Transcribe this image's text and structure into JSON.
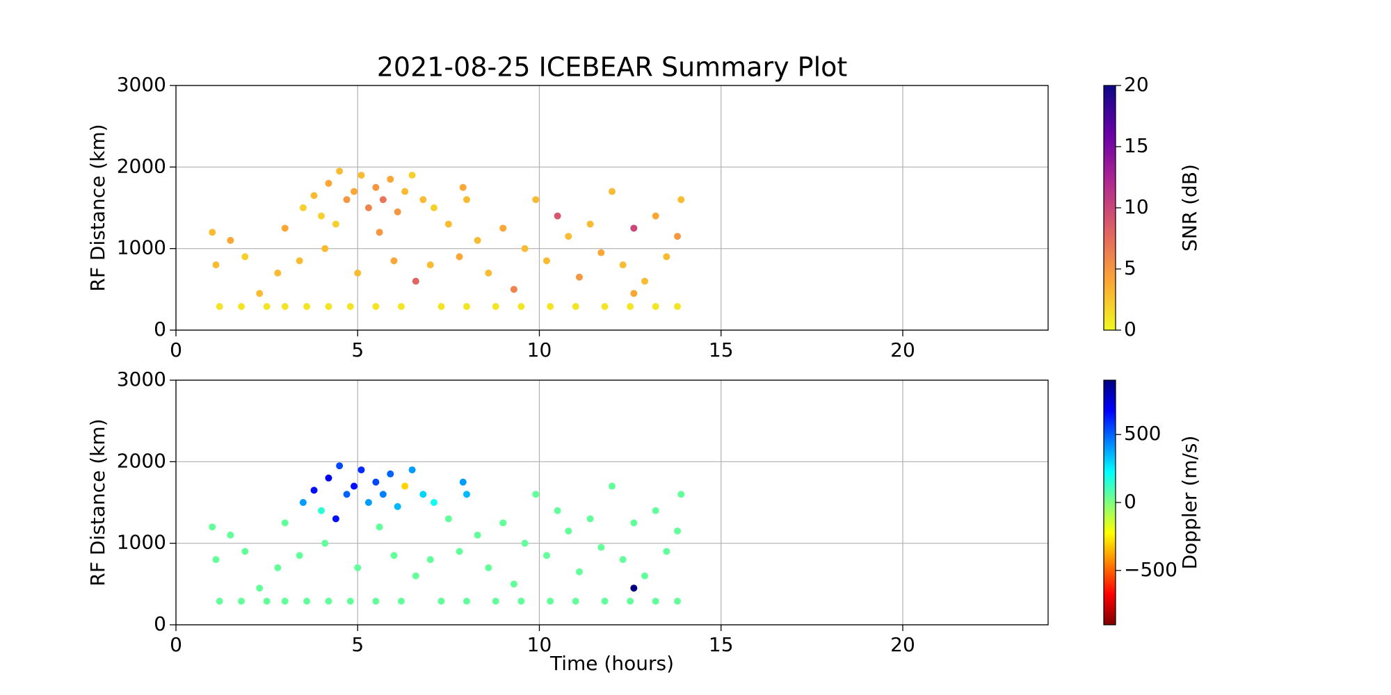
{
  "chart_data": [
    {
      "type": "scatter",
      "title": "2021-08-25 ICEBEAR Summary Plot",
      "ylabel": "RF Distance (km)",
      "xlim": [
        0,
        24
      ],
      "ylim": [
        0,
        3000
      ],
      "xticks": [
        0,
        5,
        10,
        15,
        20
      ],
      "yticks": [
        0,
        1000,
        2000,
        3000
      ],
      "grid": true,
      "colorbar": {
        "label": "SNR (dB)",
        "lim": [
          0,
          20
        ],
        "ticks": [
          0,
          5,
          10,
          15,
          20
        ],
        "colormap": "plasma_r"
      },
      "x": [
        1.2,
        1.8,
        2.5,
        3.0,
        3.6,
        4.2,
        4.8,
        5.5,
        6.2,
        7.3,
        8.0,
        8.8,
        9.5,
        10.3,
        11.0,
        11.8,
        12.5,
        13.2,
        13.8,
        3.5,
        3.8,
        4.0,
        4.2,
        4.4,
        4.5,
        4.7,
        4.9,
        5.1,
        5.3,
        5.5,
        5.7,
        5.9,
        6.1,
        6.3,
        6.5,
        6.8,
        7.1,
        7.9,
        8.0,
        1.0,
        1.1,
        1.5,
        1.9,
        2.3,
        2.8,
        3.0,
        3.4,
        4.1,
        5.0,
        5.6,
        6.0,
        6.6,
        7.0,
        7.5,
        7.8,
        8.3,
        8.6,
        9.0,
        9.3,
        9.6,
        9.9,
        10.2,
        10.5,
        10.8,
        11.1,
        11.4,
        11.7,
        12.0,
        12.3,
        12.6,
        12.9,
        13.2,
        13.5,
        13.8,
        13.9,
        12.6
      ],
      "y": [
        290,
        290,
        290,
        290,
        290,
        290,
        290,
        290,
        290,
        290,
        290,
        290,
        290,
        290,
        290,
        290,
        290,
        290,
        290,
        1500,
        1650,
        1400,
        1800,
        1300,
        1950,
        1600,
        1700,
        1900,
        1500,
        1750,
        1600,
        1850,
        1450,
        1700,
        1900,
        1600,
        1500,
        1750,
        1600,
        1200,
        800,
        1100,
        900,
        450,
        700,
        1250,
        850,
        1000,
        700,
        1200,
        850,
        600,
        800,
        1300,
        900,
        1100,
        700,
        1250,
        500,
        1000,
        1600,
        850,
        1400,
        1150,
        650,
        1300,
        950,
        1700,
        800,
        1250,
        600,
        1400,
        900,
        1150,
        1600,
        450
      ],
      "c": [
        1,
        1,
        1,
        1,
        1,
        1,
        1,
        1,
        1,
        1,
        1,
        1,
        1,
        1,
        1,
        1,
        1,
        1,
        1,
        2,
        3,
        2,
        4,
        2,
        3,
        5,
        4,
        3,
        6,
        5,
        7,
        4,
        5,
        3,
        2,
        3,
        2,
        4,
        3,
        3,
        3,
        4,
        2,
        3,
        3,
        4,
        3,
        3,
        3,
        5,
        4,
        8,
        3,
        3,
        4,
        3,
        3,
        4,
        6,
        3,
        3,
        3,
        9,
        3,
        5,
        3,
        4,
        3,
        3,
        10,
        3,
        4,
        3,
        5,
        3,
        4
      ]
    },
    {
      "type": "scatter",
      "ylabel": "RF Distance (km)",
      "xlabel": "Time (hours)",
      "xlim": [
        0,
        24
      ],
      "ylim": [
        0,
        3000
      ],
      "xticks": [
        0,
        5,
        10,
        15,
        20
      ],
      "yticks": [
        0,
        1000,
        2000,
        3000
      ],
      "grid": true,
      "colorbar": {
        "label": "Doppler (m/s)",
        "lim": [
          -900,
          900
        ],
        "ticks": [
          {
            "value": -500,
            "label": "−500"
          },
          0,
          500
        ],
        "colormap": "jet_r"
      },
      "x": [
        1.2,
        1.8,
        2.5,
        3.0,
        3.6,
        4.2,
        4.8,
        5.5,
        6.2,
        7.3,
        8.0,
        8.8,
        9.5,
        10.3,
        11.0,
        11.8,
        12.5,
        13.2,
        13.8,
        3.5,
        3.8,
        4.0,
        4.2,
        4.4,
        4.5,
        4.7,
        4.9,
        5.1,
        5.3,
        5.5,
        5.7,
        5.9,
        6.1,
        6.3,
        6.5,
        6.8,
        7.1,
        7.9,
        8.0,
        1.0,
        1.1,
        1.5,
        1.9,
        2.3,
        2.8,
        3.0,
        3.4,
        4.1,
        5.0,
        5.6,
        6.0,
        6.6,
        7.0,
        7.5,
        7.8,
        8.3,
        8.6,
        9.0,
        9.3,
        9.6,
        9.9,
        10.2,
        10.5,
        10.8,
        11.1,
        11.4,
        11.7,
        12.0,
        12.3,
        12.6,
        12.9,
        13.2,
        13.5,
        13.8,
        13.9,
        12.6
      ],
      "y": [
        290,
        290,
        290,
        290,
        290,
        290,
        290,
        290,
        290,
        290,
        290,
        290,
        290,
        290,
        290,
        290,
        290,
        290,
        290,
        1500,
        1650,
        1400,
        1800,
        1300,
        1950,
        1600,
        1700,
        1900,
        1500,
        1750,
        1600,
        1850,
        1450,
        1700,
        1900,
        1600,
        1500,
        1750,
        1600,
        1200,
        800,
        1100,
        900,
        450,
        700,
        1250,
        850,
        1000,
        700,
        1200,
        850,
        600,
        800,
        1300,
        900,
        1100,
        700,
        1250,
        500,
        1000,
        1600,
        850,
        1400,
        1150,
        650,
        1300,
        950,
        1700,
        800,
        1250,
        600,
        1400,
        900,
        1150,
        1600,
        450
      ],
      "c": [
        50,
        50,
        50,
        50,
        50,
        50,
        50,
        50,
        50,
        50,
        50,
        50,
        50,
        50,
        50,
        50,
        50,
        50,
        50,
        400,
        650,
        150,
        700,
        650,
        550,
        500,
        650,
        600,
        400,
        550,
        450,
        500,
        350,
        -300,
        400,
        300,
        200,
        400,
        350,
        50,
        50,
        50,
        50,
        50,
        50,
        50,
        50,
        50,
        50,
        50,
        50,
        50,
        50,
        50,
        50,
        50,
        50,
        50,
        50,
        50,
        50,
        50,
        50,
        50,
        50,
        50,
        50,
        50,
        50,
        50,
        50,
        50,
        50,
        50,
        50,
        900
      ]
    }
  ]
}
